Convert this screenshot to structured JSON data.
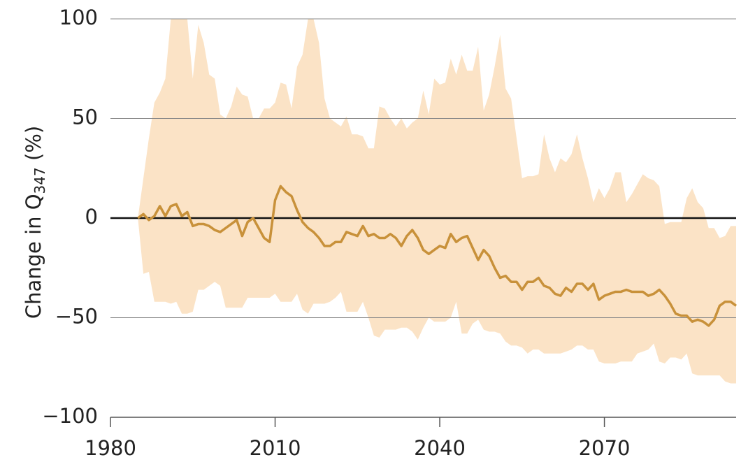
{
  "chart_data": {
    "type": "line",
    "ylabel": "Change in Q",
    "ylabel_subscript": "347",
    "ylabel_suffix": " (%)",
    "x": [
      1985,
      1986,
      1987,
      1988,
      1989,
      1990,
      1991,
      1992,
      1993,
      1994,
      1995,
      1996,
      1997,
      1998,
      1999,
      2000,
      2001,
      2002,
      2003,
      2004,
      2005,
      2006,
      2007,
      2008,
      2009,
      2010,
      2011,
      2012,
      2013,
      2014,
      2015,
      2016,
      2017,
      2018,
      2019,
      2020,
      2021,
      2022,
      2023,
      2024,
      2025,
      2026,
      2027,
      2028,
      2029,
      2030,
      2031,
      2032,
      2033,
      2034,
      2035,
      2036,
      2037,
      2038,
      2039,
      2040,
      2041,
      2042,
      2043,
      2044,
      2045,
      2046,
      2047,
      2048,
      2049,
      2050,
      2051,
      2052,
      2053,
      2054,
      2055,
      2056,
      2057,
      2058,
      2059,
      2060,
      2061,
      2062,
      2063,
      2064,
      2065,
      2066,
      2067,
      2068,
      2069,
      2070,
      2071,
      2072,
      2073,
      2074,
      2075,
      2076,
      2077,
      2078,
      2079,
      2080,
      2081,
      2082,
      2083,
      2084,
      2085,
      2086,
      2087,
      2088,
      2089,
      2090,
      2091,
      2092,
      2093,
      2094
    ],
    "median": {
      "color": "#c8913a",
      "values": [
        0,
        2,
        -1,
        1,
        6,
        1,
        6,
        7,
        1,
        3,
        -4,
        -3,
        -3,
        -4,
        -6,
        -7,
        -5,
        -3,
        -1,
        -9,
        -2,
        0,
        -5,
        -10,
        -12,
        9,
        16,
        13,
        11,
        4,
        -2,
        -5,
        -7,
        -10,
        -14,
        -14,
        -12,
        -12,
        -7,
        -8,
        -9,
        -4,
        -9,
        -8,
        -10,
        -10,
        -8,
        -10,
        -14,
        -9,
        -6,
        -10,
        -16,
        -18,
        -16,
        -14,
        -15,
        -8,
        -12,
        -10,
        -9,
        -15,
        -21,
        -16,
        -19,
        -25,
        -30,
        -29,
        -32,
        -32,
        -36,
        -32,
        -32,
        -30,
        -34,
        -35,
        -38,
        -39,
        -35,
        -37,
        -33,
        -33,
        -36,
        -33,
        -41,
        -39,
        -38,
        -37,
        -37,
        -36,
        -37,
        -37,
        -37,
        -39,
        -38,
        -36,
        -39,
        -43,
        -48,
        -49,
        -49,
        -52,
        -51,
        -52,
        -54,
        -51,
        -44,
        -42,
        -42,
        -44
      ]
    },
    "band": {
      "color": "#fbe3c6",
      "upper": [
        0,
        20,
        40,
        58,
        63,
        70,
        100,
        100,
        100,
        100,
        70,
        97,
        88,
        72,
        70,
        52,
        50,
        56,
        66,
        62,
        61,
        50,
        50,
        55,
        55,
        58,
        68,
        67,
        55,
        76,
        82,
        100,
        100,
        88,
        60,
        50,
        48,
        46,
        51,
        42,
        42,
        41,
        35,
        35,
        56,
        55,
        50,
        46,
        50,
        45,
        48,
        50,
        64,
        52,
        70,
        67,
        68,
        80,
        72,
        82,
        74,
        74,
        86,
        54,
        62,
        76,
        92,
        65,
        60,
        40,
        20,
        21,
        21,
        22,
        42,
        30,
        23,
        30,
        28,
        32,
        42,
        30,
        20,
        8,
        15,
        10,
        15,
        23,
        23,
        8,
        12,
        17,
        22,
        20,
        19,
        16,
        -3,
        -2,
        -2,
        -2,
        10,
        15,
        8,
        5,
        -5,
        -5,
        -10,
        -9,
        -4,
        -4
      ],
      "lower": [
        0,
        -28,
        -27,
        -42,
        -42,
        -42,
        -43,
        -42,
        -48,
        -48,
        -47,
        -36,
        -36,
        -34,
        -32,
        -34,
        -45,
        -45,
        -45,
        -45,
        -40,
        -40,
        -40,
        -40,
        -40,
        -38,
        -42,
        -42,
        -42,
        -38,
        -46,
        -48,
        -43,
        -43,
        -43,
        -42,
        -40,
        -37,
        -47,
        -47,
        -47,
        -42,
        -50,
        -59,
        -60,
        -56,
        -56,
        -56,
        -55,
        -55,
        -57,
        -61,
        -55,
        -50,
        -52,
        -52,
        -52,
        -50,
        -42,
        -58,
        -58,
        -53,
        -51,
        -56,
        -57,
        -57,
        -58,
        -62,
        -64,
        -64,
        -65,
        -68,
        -66,
        -66,
        -68,
        -68,
        -68,
        -68,
        -67,
        -66,
        -64,
        -64,
        -66,
        -66,
        -72,
        -73,
        -73,
        -73,
        -72,
        -72,
        -72,
        -68,
        -67,
        -66,
        -63,
        -72,
        -73,
        -70,
        -70,
        -71,
        -68,
        -78,
        -79,
        -79,
        -79,
        -79,
        -79,
        -82,
        -83,
        -83
      ]
    },
    "xlim": [
      1980,
      2094
    ],
    "xticks": [
      1980,
      2010,
      2040,
      2070
    ],
    "ylim": [
      -100,
      100
    ],
    "yticks": [
      {
        "value": -100,
        "label": "−100"
      },
      {
        "value": -50,
        "label": "−50"
      },
      0,
      50,
      100
    ],
    "grid": true
  }
}
